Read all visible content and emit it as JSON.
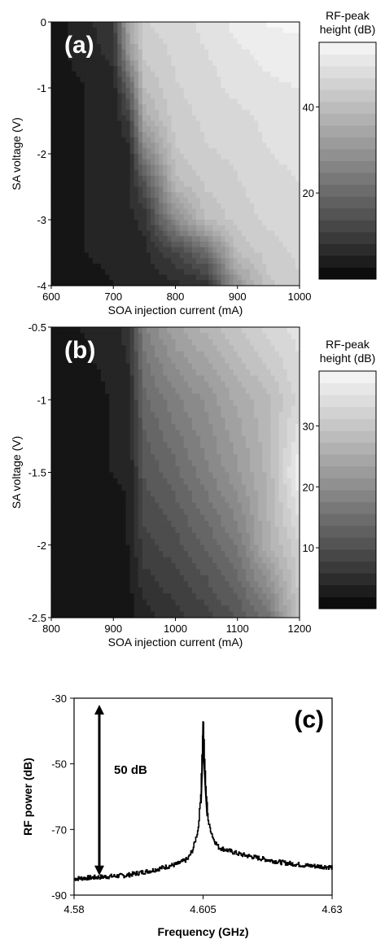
{
  "chart_data": [
    {
      "type": "heatmap",
      "panel_label": "(a)",
      "xlabel": "SOA injection current (mA)",
      "ylabel": "SA voltage (V)",
      "xlim": [
        600,
        1000
      ],
      "ylim": [
        -4,
        0
      ],
      "xticks": [
        "600",
        "700",
        "800",
        "900",
        "1000"
      ],
      "yticks": [
        "0",
        "-1",
        "-2",
        "-3",
        "-4"
      ],
      "colorbar": {
        "title": [
          "RF-peak",
          "height (dB)"
        ],
        "range": [
          0,
          55
        ],
        "ticks": [
          "40",
          "20"
        ],
        "tick_values": [
          40,
          20
        ]
      },
      "x": [
        600,
        650,
        700,
        725,
        750,
        800,
        850,
        900,
        950,
        1000
      ],
      "y": [
        0,
        -0.5,
        -1,
        -1.5,
        -2,
        -2.5,
        -3,
        -3.5,
        -4
      ],
      "z": [
        [
          3,
          5,
          10,
          35,
          45,
          47,
          49,
          52,
          54,
          54
        ],
        [
          3,
          5,
          8,
          30,
          43,
          46,
          48,
          50,
          52,
          53
        ],
        [
          3,
          4,
          5,
          18,
          40,
          45,
          47,
          49,
          50,
          51
        ],
        [
          3,
          4,
          5,
          10,
          35,
          44,
          46,
          47,
          49,
          50
        ],
        [
          3,
          4,
          5,
          6,
          25,
          42,
          45,
          46,
          48,
          49
        ],
        [
          3,
          4,
          5,
          6,
          14,
          38,
          43,
          45,
          47,
          48
        ],
        [
          3,
          4,
          5,
          6,
          8,
          28,
          40,
          44,
          46,
          47
        ],
        [
          3,
          4,
          5,
          6,
          6,
          12,
          20,
          40,
          44,
          46
        ],
        [
          3,
          3,
          4,
          5,
          5,
          6,
          8,
          30,
          42,
          45
        ]
      ]
    },
    {
      "type": "heatmap",
      "panel_label": "(b)",
      "xlabel": "SOA injection current (mA)",
      "ylabel": "SA voltage (V)",
      "xlim": [
        800,
        1200
      ],
      "ylim": [
        -2.5,
        -0.5
      ],
      "xticks": [
        "800",
        "900",
        "1000",
        "1100",
        "1200"
      ],
      "yticks": [
        "-0.5",
        "-1",
        "-1.5",
        "-2",
        "-2.5"
      ],
      "colorbar": {
        "title": [
          "RF-peak",
          "height (dB)"
        ],
        "range": [
          0,
          39
        ],
        "ticks": [
          "30",
          "20",
          "10"
        ],
        "tick_values": [
          30,
          20,
          10
        ]
      },
      "x": [
        800,
        850,
        900,
        925,
        950,
        1000,
        1050,
        1100,
        1150,
        1200
      ],
      "y": [
        -0.5,
        -1,
        -1.5,
        -2,
        -2.5
      ],
      "z": [
        [
          2,
          3,
          4,
          6,
          18,
          24,
          27,
          30,
          33,
          35
        ],
        [
          2,
          2,
          3,
          4,
          14,
          18,
          21,
          25,
          28,
          33
        ],
        [
          2,
          2,
          3,
          3,
          11,
          14,
          18,
          22,
          27,
          38
        ],
        [
          2,
          2,
          2,
          3,
          8,
          10,
          13,
          17,
          26,
          32
        ],
        [
          2,
          2,
          2,
          2,
          4,
          6,
          8,
          11,
          16,
          30
        ]
      ]
    },
    {
      "type": "line",
      "panel_label": "(c)",
      "xlabel": "Frequency (GHz)",
      "ylabel": "RF power (dB)",
      "xlim": [
        4.58,
        4.63
      ],
      "ylim": [
        -90,
        -30
      ],
      "xticks": [
        "4.58",
        "4.605",
        "4.63"
      ],
      "yticks": [
        "-30",
        "-50",
        "-70",
        "-90"
      ],
      "annotation": "50 dB",
      "annotation_arrow_y": [
        -32,
        -84
      ],
      "x": [
        4.58,
        4.585,
        4.59,
        4.595,
        4.6,
        4.602,
        4.603,
        4.604,
        4.6045,
        4.6048,
        4.605,
        4.6052,
        4.6055,
        4.606,
        4.607,
        4.608,
        4.61,
        4.612,
        4.615,
        4.62,
        4.625,
        4.63
      ],
      "y": [
        -85,
        -84.5,
        -84,
        -82.5,
        -80.5,
        -79,
        -76,
        -70,
        -60,
        -45,
        -37,
        -47,
        -58,
        -68,
        -73,
        -75.5,
        -76.5,
        -77.5,
        -78.5,
        -80,
        -81,
        -81.5
      ]
    }
  ]
}
